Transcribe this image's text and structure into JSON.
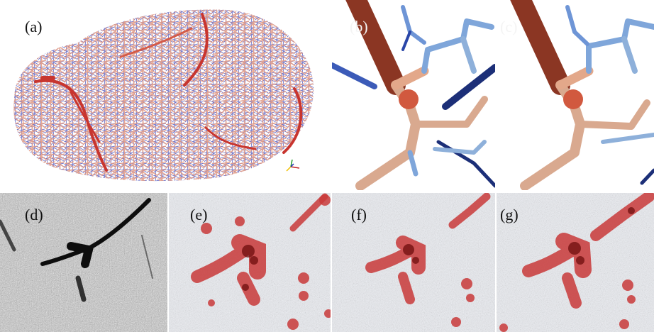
{
  "figure": {
    "panel_labels": {
      "a": "(a)",
      "b": "(b)",
      "c": "(c)",
      "d": "(d)",
      "e": "(e)",
      "f": "(f)",
      "g": "(g)"
    }
  },
  "colors": {
    "vessel_red": "#c8352f",
    "vessel_salmon": "#e49a82",
    "vessel_blue": "#6f74c9",
    "vessel_dark_blue": "#1c2f78",
    "vessel_light_blue": "#7fa6da",
    "vessel_tan": "#d9a98f",
    "vessel_brown": "#8b3623",
    "overlay_red": "#c93a3a",
    "overlay_dark_red": "#6e0d0d",
    "background_noise_light": "#e8e9ee",
    "background_noise_dark": "#111111"
  },
  "icons": {
    "axis_triad": "xyz-axis-icon"
  }
}
